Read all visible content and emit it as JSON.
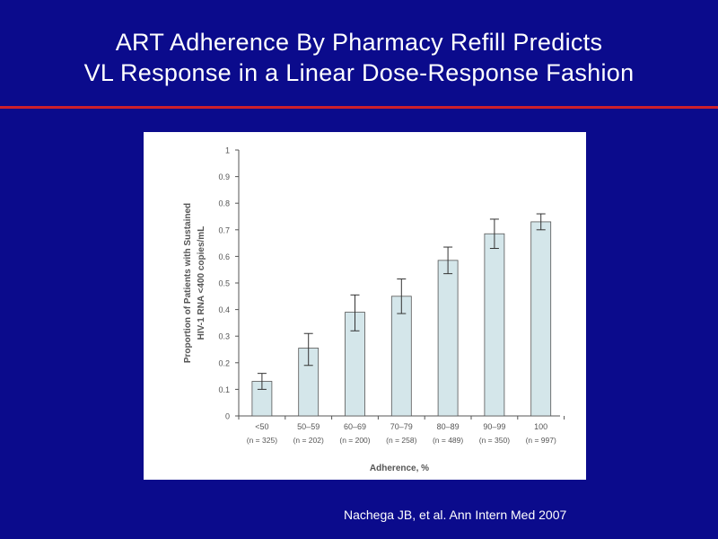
{
  "slide": {
    "title_line1": "ART Adherence By Pharmacy Refill Predicts",
    "title_line2": "VL Response in a Linear Dose-Response Fashion",
    "citation": "Nachega JB, et al. Ann Intern Med 2007",
    "background_color": "#0b0b8c",
    "rule_color": "#cc1f2c"
  },
  "chart_data": {
    "type": "bar",
    "categories": [
      "<50",
      "50–59",
      "60–69",
      "70–79",
      "80–89",
      "90–99",
      "100"
    ],
    "n_labels": [
      "(n = 325)",
      "(n = 202)",
      "(n = 200)",
      "(n = 258)",
      "(n = 489)",
      "(n = 350)",
      "(n = 997)"
    ],
    "values": [
      0.13,
      0.255,
      0.39,
      0.45,
      0.585,
      0.685,
      0.73
    ],
    "error_low": [
      0.1,
      0.19,
      0.32,
      0.385,
      0.535,
      0.63,
      0.7
    ],
    "error_high": [
      0.16,
      0.31,
      0.455,
      0.515,
      0.635,
      0.74,
      0.76
    ],
    "xlabel": "Adherence, %",
    "ylabel_line1": "Proportion of Patients with Sustained",
    "ylabel_line2": "HIV-1 RNA <400 copies/mL",
    "ylim": [
      0,
      1
    ],
    "yticks": [
      "0",
      "0.1",
      "0.2",
      "0.3",
      "0.4",
      "0.5",
      "0.6",
      "0.7",
      "0.8",
      "0.9",
      "1"
    ],
    "grid": false,
    "bar_color": "#d4e6ea",
    "bar_edge_color": "#555555"
  }
}
